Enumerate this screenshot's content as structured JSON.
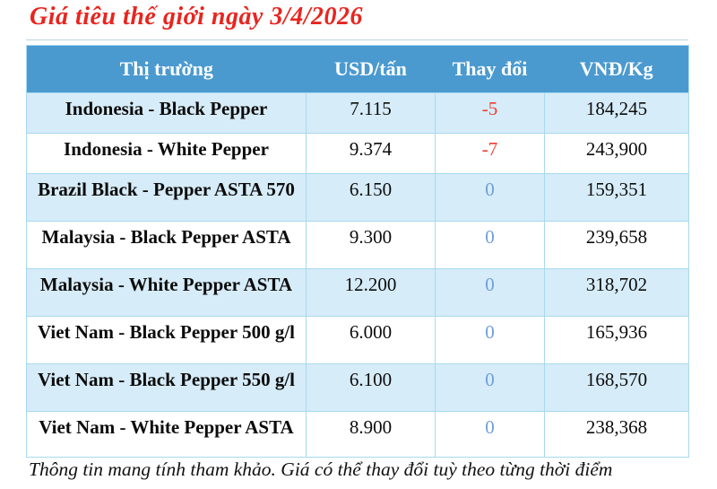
{
  "page": {
    "title": "Giá tiêu thế giới ngày 3/4/2026",
    "footer_note": "Thông tin mang tính tham khảo. Giá có thể thay đổi tuỳ theo từng thời điểm"
  },
  "colors": {
    "header_bg": "#4a9ad0",
    "row_alt_bg": "#d6ecf8",
    "row_bg": "#ffffff",
    "cell_border": "#a8d9f0",
    "title_red": "#e8251f",
    "change_negative_red": "#f43b2d",
    "change_zero_blue": "#6f9ed9"
  },
  "table": {
    "columns": {
      "market": "Thị trường",
      "usd": "USD/tấn",
      "change": "Thay đổi",
      "vnd": "VNĐ/Kg"
    },
    "rows": [
      {
        "market": "Indonesia - Black Pepper",
        "usd": "7.115",
        "change": "-5",
        "vnd": "184,245",
        "direction": "down"
      },
      {
        "market": "Indonesia - White Pepper",
        "usd": "9.374",
        "change": "-7",
        "vnd": "243,900",
        "direction": "down"
      },
      {
        "market": "Brazil Black - Pepper ASTA 570",
        "usd": "6.150",
        "change": "0",
        "vnd": "159,351",
        "direction": "flat"
      },
      {
        "market": "Malaysia - Black Pepper ASTA",
        "usd": "9.300",
        "change": "0",
        "vnd": "239,658",
        "direction": "flat"
      },
      {
        "market": "Malaysia - White Pepper ASTA",
        "usd": "12.200",
        "change": "0",
        "vnd": "318,702",
        "direction": "flat"
      },
      {
        "market": "Viet Nam - Black Pepper 500 g/l",
        "usd": "6.000",
        "change": "0",
        "vnd": "165,936",
        "direction": "flat"
      },
      {
        "market": "Viet Nam - Black Pepper 550 g/l",
        "usd": "6.100",
        "change": "0",
        "vnd": "168,570",
        "direction": "flat"
      },
      {
        "market": "Viet Nam - White Pepper ASTA",
        "usd": "8.900",
        "change": "0",
        "vnd": "238,368",
        "direction": "flat"
      }
    ]
  }
}
